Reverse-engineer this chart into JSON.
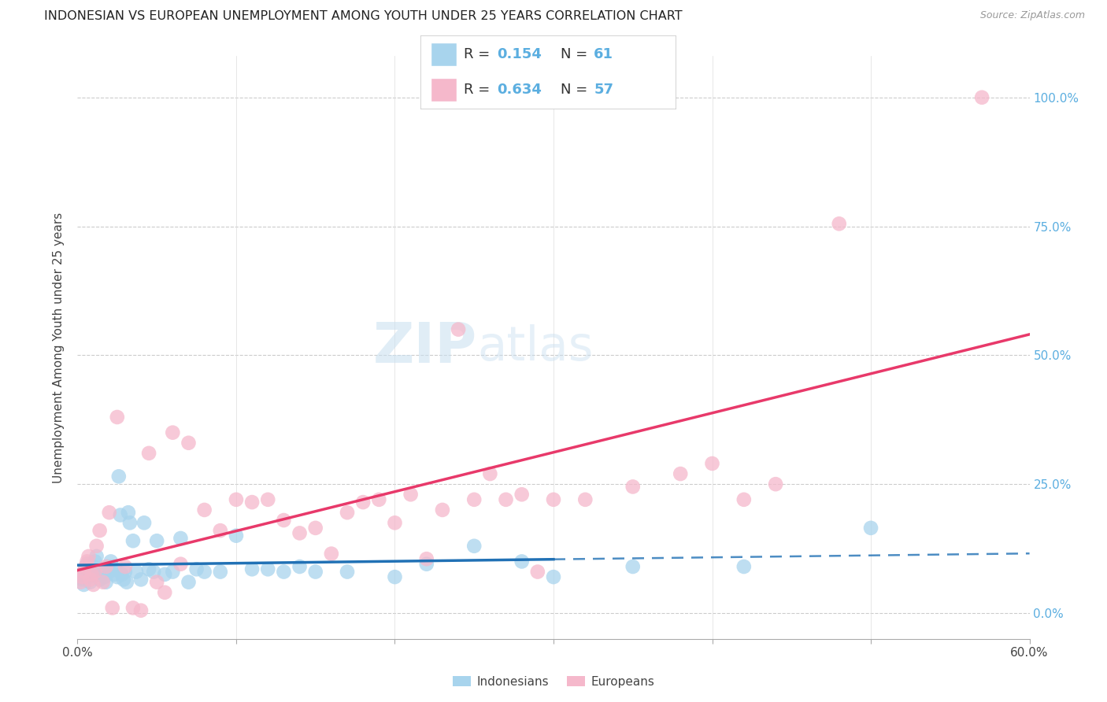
{
  "title": "INDONESIAN VS EUROPEAN UNEMPLOYMENT AMONG YOUTH UNDER 25 YEARS CORRELATION CHART",
  "source": "Source: ZipAtlas.com",
  "ylabel": "Unemployment Among Youth under 25 years",
  "xlim": [
    0.0,
    0.6
  ],
  "ylim": [
    -0.05,
    1.08
  ],
  "xticks": [
    0.0,
    0.1,
    0.2,
    0.3,
    0.4,
    0.5,
    0.6
  ],
  "xtick_labels": [
    "0.0%",
    "",
    "",
    "",
    "",
    "",
    "60.0%"
  ],
  "yticks": [
    0.0,
    0.25,
    0.5,
    0.75,
    1.0
  ],
  "ytick_labels_right": [
    "0.0%",
    "25.0%",
    "50.0%",
    "75.0%",
    "100.0%"
  ],
  "indonesian_R": 0.154,
  "indonesian_N": 61,
  "european_R": 0.634,
  "european_N": 57,
  "indonesian_color": "#a8d4ed",
  "european_color": "#f5b8cb",
  "indonesian_line_color": "#2171b5",
  "european_line_color": "#e8396a",
  "background_color": "#ffffff",
  "indonesian_x": [
    0.002,
    0.003,
    0.004,
    0.005,
    0.006,
    0.007,
    0.008,
    0.009,
    0.01,
    0.011,
    0.012,
    0.013,
    0.014,
    0.015,
    0.016,
    0.017,
    0.018,
    0.019,
    0.02,
    0.021,
    0.022,
    0.023,
    0.024,
    0.025,
    0.026,
    0.027,
    0.028,
    0.029,
    0.03,
    0.031,
    0.032,
    0.033,
    0.035,
    0.037,
    0.04,
    0.042,
    0.045,
    0.048,
    0.05,
    0.055,
    0.06,
    0.065,
    0.07,
    0.075,
    0.08,
    0.09,
    0.1,
    0.11,
    0.12,
    0.13,
    0.14,
    0.15,
    0.17,
    0.2,
    0.22,
    0.25,
    0.28,
    0.3,
    0.35,
    0.42,
    0.5
  ],
  "indonesian_y": [
    0.075,
    0.065,
    0.055,
    0.085,
    0.095,
    0.07,
    0.06,
    0.08,
    0.09,
    0.1,
    0.11,
    0.075,
    0.065,
    0.085,
    0.08,
    0.07,
    0.06,
    0.09,
    0.08,
    0.1,
    0.09,
    0.075,
    0.085,
    0.07,
    0.265,
    0.19,
    0.075,
    0.065,
    0.08,
    0.06,
    0.195,
    0.175,
    0.14,
    0.08,
    0.065,
    0.175,
    0.085,
    0.08,
    0.14,
    0.075,
    0.08,
    0.145,
    0.06,
    0.085,
    0.08,
    0.08,
    0.15,
    0.085,
    0.085,
    0.08,
    0.09,
    0.08,
    0.08,
    0.07,
    0.095,
    0.13,
    0.1,
    0.07,
    0.09,
    0.09,
    0.165
  ],
  "european_x": [
    0.002,
    0.003,
    0.004,
    0.005,
    0.006,
    0.007,
    0.008,
    0.009,
    0.01,
    0.011,
    0.012,
    0.014,
    0.016,
    0.018,
    0.02,
    0.022,
    0.025,
    0.03,
    0.035,
    0.04,
    0.045,
    0.05,
    0.055,
    0.06,
    0.065,
    0.07,
    0.08,
    0.09,
    0.1,
    0.11,
    0.12,
    0.13,
    0.14,
    0.15,
    0.16,
    0.17,
    0.18,
    0.19,
    0.2,
    0.21,
    0.22,
    0.23,
    0.24,
    0.25,
    0.26,
    0.27,
    0.28,
    0.29,
    0.3,
    0.32,
    0.35,
    0.38,
    0.4,
    0.42,
    0.44,
    0.48,
    0.57
  ],
  "european_y": [
    0.06,
    0.07,
    0.08,
    0.09,
    0.1,
    0.11,
    0.065,
    0.075,
    0.055,
    0.08,
    0.13,
    0.16,
    0.06,
    0.09,
    0.195,
    0.01,
    0.38,
    0.09,
    0.01,
    0.005,
    0.31,
    0.06,
    0.04,
    0.35,
    0.095,
    0.33,
    0.2,
    0.16,
    0.22,
    0.215,
    0.22,
    0.18,
    0.155,
    0.165,
    0.115,
    0.195,
    0.215,
    0.22,
    0.175,
    0.23,
    0.105,
    0.2,
    0.55,
    0.22,
    0.27,
    0.22,
    0.23,
    0.08,
    0.22,
    0.22,
    0.245,
    0.27,
    0.29,
    0.22,
    0.25,
    0.755,
    1.0
  ]
}
